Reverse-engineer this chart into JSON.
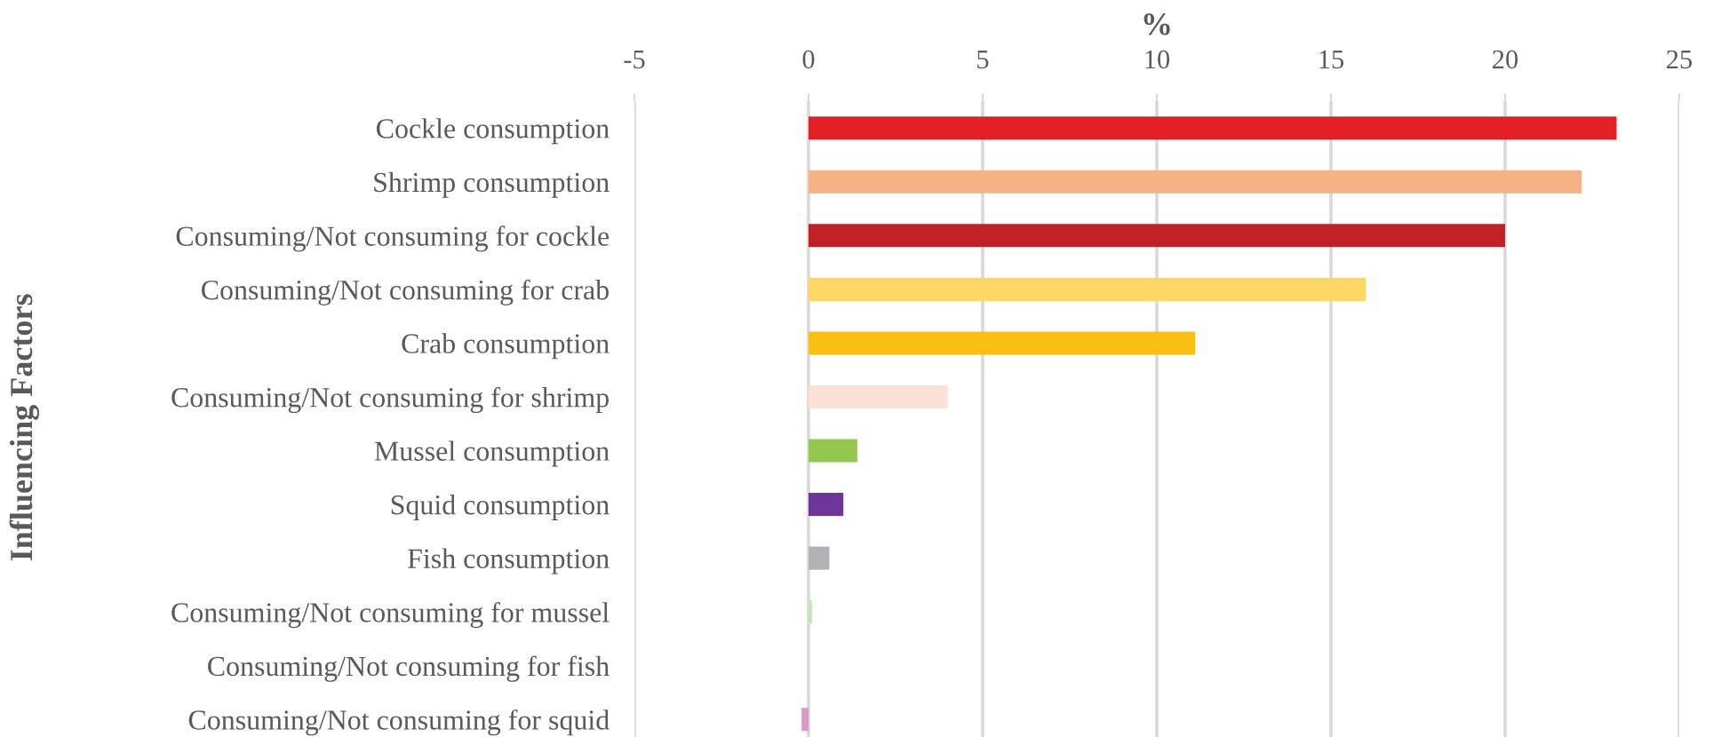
{
  "chart_data": {
    "type": "bar",
    "orientation": "horizontal",
    "xlabel": "%",
    "ylabel": "Influencing Factors",
    "categories": [
      "Cockle consumption",
      "Shrimp consumption",
      "Consuming/Not consuming for cockle",
      "Consuming/Not consuming for crab",
      "Crab consumption",
      "Consuming/Not consuming for shrimp",
      "Mussel consumption",
      "Squid consumption",
      "Fish consumption",
      "Consuming/Not consuming for mussel",
      "Consuming/Not consuming for fish",
      "Consuming/Not consuming for squid"
    ],
    "values": [
      23.2,
      22.2,
      20.0,
      16.0,
      11.1,
      4.0,
      1.4,
      1.0,
      0.6,
      0.1,
      0,
      -0.2
    ],
    "colors": [
      "#e31e24",
      "#f4b183",
      "#c02026",
      "#fdd663",
      "#fbbe12",
      "#fbe2d6",
      "#92c850",
      "#6e3598",
      "#b1b2b6",
      "#c9e6b8",
      "#a9d18e",
      "#d99ac5"
    ],
    "xlim": [
      -5,
      25
    ],
    "xticks": [
      -5,
      0,
      5,
      10,
      15,
      20,
      25
    ],
    "grid": "x",
    "legend": false
  }
}
